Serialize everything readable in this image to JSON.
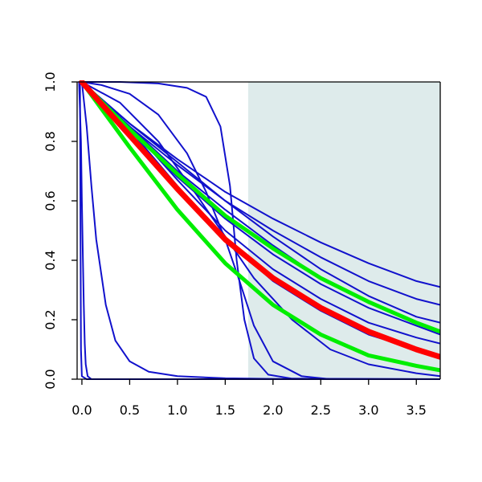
{
  "chart_data": {
    "type": "line",
    "title": "",
    "xlabel": "",
    "ylabel": "",
    "xlim": [
      -0.05,
      3.75
    ],
    "ylim": [
      0.0,
      1.0
    ],
    "x_ticks": [
      0.0,
      0.5,
      1.0,
      1.5,
      2.0,
      2.5,
      3.0,
      3.5
    ],
    "x_tick_labels": [
      "0.0",
      "0.5",
      "1.0",
      "1.5",
      "2.0",
      "2.5",
      "3.0",
      "3.5"
    ],
    "y_ticks": [
      0.0,
      0.2,
      0.4,
      0.6,
      0.8,
      1.0
    ],
    "y_tick_labels": [
      "0.0",
      "0.2",
      "0.4",
      "0.6",
      "0.8",
      "1.0"
    ],
    "grid": false,
    "legend": "none",
    "shaded_region": {
      "x_from": 1.74,
      "x_to": 3.75,
      "color": "#deebeb"
    },
    "colors": {
      "blue": "#1111cc",
      "red": "#ff0000",
      "green": "#00ee00",
      "axis": "#000000"
    },
    "series": [
      {
        "color": "#1111cc",
        "width": 2,
        "points": [
          [
            0,
            1
          ],
          [
            0.5,
            0.86
          ],
          [
            1,
            0.74
          ],
          [
            1.5,
            0.63
          ],
          [
            2,
            0.54
          ],
          [
            2.5,
            0.46
          ],
          [
            3,
            0.39
          ],
          [
            3.5,
            0.33
          ],
          [
            3.75,
            0.31
          ]
        ]
      },
      {
        "color": "#1111cc",
        "width": 2,
        "points": [
          [
            0,
            1
          ],
          [
            0.5,
            0.85
          ],
          [
            1,
            0.72
          ],
          [
            1.5,
            0.6
          ],
          [
            2,
            0.5
          ],
          [
            2.5,
            0.41
          ],
          [
            3,
            0.33
          ],
          [
            3.5,
            0.27
          ],
          [
            3.75,
            0.25
          ]
        ]
      },
      {
        "color": "#1111cc",
        "width": 2,
        "points": [
          [
            0,
            1
          ],
          [
            0.5,
            0.86
          ],
          [
            1,
            0.73
          ],
          [
            1.5,
            0.6
          ],
          [
            2,
            0.48
          ],
          [
            2.5,
            0.37
          ],
          [
            3,
            0.28
          ],
          [
            3.5,
            0.21
          ],
          [
            3.75,
            0.19
          ]
        ]
      },
      {
        "color": "#1111cc",
        "width": 2,
        "points": [
          [
            0,
            1
          ],
          [
            0.5,
            0.85
          ],
          [
            1,
            0.7
          ],
          [
            1.5,
            0.57
          ],
          [
            2,
            0.45
          ],
          [
            2.5,
            0.34
          ],
          [
            3,
            0.26
          ],
          [
            3.5,
            0.19
          ],
          [
            3.75,
            0.16
          ]
        ]
      },
      {
        "color": "#1111cc",
        "width": 2,
        "points": [
          [
            0,
            1
          ],
          [
            0.5,
            0.84
          ],
          [
            1,
            0.68
          ],
          [
            1.5,
            0.54
          ],
          [
            2,
            0.42
          ],
          [
            2.5,
            0.32
          ],
          [
            3,
            0.24
          ],
          [
            3.5,
            0.18
          ],
          [
            3.75,
            0.15
          ]
        ]
      },
      {
        "color": "#1111cc",
        "width": 2,
        "points": [
          [
            0,
            1
          ],
          [
            0.5,
            0.85
          ],
          [
            1,
            0.67
          ],
          [
            1.5,
            0.5
          ],
          [
            2,
            0.37
          ],
          [
            2.5,
            0.27
          ],
          [
            3,
            0.19
          ],
          [
            3.5,
            0.14
          ],
          [
            3.75,
            0.12
          ]
        ]
      },
      {
        "color": "#1111cc",
        "width": 2,
        "points": [
          [
            0,
            1
          ],
          [
            0.5,
            0.84
          ],
          [
            1,
            0.65
          ],
          [
            1.5,
            0.47
          ],
          [
            2,
            0.33
          ],
          [
            2.5,
            0.23
          ],
          [
            3,
            0.15
          ],
          [
            3.5,
            0.1
          ],
          [
            3.75,
            0.08
          ]
        ]
      },
      {
        "color": "#1111cc",
        "width": 2,
        "points": [
          [
            0,
            1
          ],
          [
            0.4,
            0.93
          ],
          [
            0.8,
            0.8
          ],
          [
            1.2,
            0.62
          ],
          [
            1.5,
            0.48
          ],
          [
            1.8,
            0.34
          ],
          [
            2.2,
            0.2
          ],
          [
            2.6,
            0.1
          ],
          [
            3,
            0.05
          ],
          [
            3.5,
            0.02
          ],
          [
            3.75,
            0.01
          ]
        ]
      },
      {
        "color": "#1111cc",
        "width": 2,
        "points": [
          [
            0,
            1
          ],
          [
            0.2,
            0.99
          ],
          [
            0.5,
            0.96
          ],
          [
            0.8,
            0.89
          ],
          [
            1.1,
            0.76
          ],
          [
            1.3,
            0.63
          ],
          [
            1.5,
            0.47
          ],
          [
            1.65,
            0.33
          ],
          [
            1.8,
            0.18
          ],
          [
            2,
            0.06
          ],
          [
            2.3,
            0.01
          ],
          [
            2.6,
            0
          ],
          [
            3.75,
            0
          ]
        ]
      },
      {
        "color": "#1111cc",
        "width": 2,
        "points": [
          [
            0,
            1
          ],
          [
            0.4,
            1
          ],
          [
            0.8,
            0.995
          ],
          [
            1.1,
            0.98
          ],
          [
            1.3,
            0.95
          ],
          [
            1.45,
            0.85
          ],
          [
            1.55,
            0.65
          ],
          [
            1.62,
            0.4
          ],
          [
            1.7,
            0.2
          ],
          [
            1.8,
            0.07
          ],
          [
            1.95,
            0.015
          ],
          [
            2.2,
            0.002
          ],
          [
            3.75,
            0
          ]
        ]
      },
      {
        "color": "#1111cc",
        "width": 2,
        "points": [
          [
            0,
            1
          ],
          [
            0.05,
            0.85
          ],
          [
            0.1,
            0.65
          ],
          [
            0.15,
            0.47
          ],
          [
            0.25,
            0.25
          ],
          [
            0.35,
            0.13
          ],
          [
            0.5,
            0.06
          ],
          [
            0.7,
            0.025
          ],
          [
            1,
            0.01
          ],
          [
            1.5,
            0.003
          ],
          [
            2,
            0.001
          ],
          [
            3.75,
            0
          ]
        ]
      },
      {
        "color": "#1111cc",
        "width": 2,
        "points": [
          [
            -0.03,
            1
          ],
          [
            -0.01,
            0.8
          ],
          [
            0,
            0.6
          ],
          [
            0.01,
            0.42
          ],
          [
            0.02,
            0.25
          ],
          [
            0.03,
            0.12
          ],
          [
            0.04,
            0.05
          ],
          [
            0.06,
            0.01
          ],
          [
            0.1,
            0
          ],
          [
            3.75,
            0
          ]
        ]
      },
      {
        "color": "#1111cc",
        "width": 2,
        "points": [
          [
            -0.02,
            1
          ],
          [
            -0.015,
            0.5
          ],
          [
            -0.01,
            0.1
          ],
          [
            0,
            0.01
          ],
          [
            0.05,
            0
          ],
          [
            3.75,
            0
          ]
        ]
      },
      {
        "color": "#00ee00",
        "width": 5,
        "points": [
          [
            0,
            1
          ],
          [
            0.5,
            0.84
          ],
          [
            1,
            0.69
          ],
          [
            1.5,
            0.55
          ],
          [
            2,
            0.44
          ],
          [
            2.5,
            0.34
          ],
          [
            3,
            0.26
          ],
          [
            3.5,
            0.19
          ],
          [
            3.75,
            0.16
          ]
        ]
      },
      {
        "color": "#00ee00",
        "width": 5,
        "points": [
          [
            0,
            1
          ],
          [
            0.5,
            0.78
          ],
          [
            1,
            0.57
          ],
          [
            1.5,
            0.39
          ],
          [
            2,
            0.25
          ],
          [
            2.5,
            0.15
          ],
          [
            3,
            0.08
          ],
          [
            3.5,
            0.045
          ],
          [
            3.75,
            0.03
          ]
        ]
      },
      {
        "color": "#ff0000",
        "width": 7,
        "points": [
          [
            0,
            1
          ],
          [
            0.5,
            0.82
          ],
          [
            1,
            0.64
          ],
          [
            1.5,
            0.47
          ],
          [
            2,
            0.34
          ],
          [
            2.5,
            0.24
          ],
          [
            3,
            0.16
          ],
          [
            3.5,
            0.1
          ],
          [
            3.75,
            0.075
          ]
        ]
      }
    ]
  }
}
